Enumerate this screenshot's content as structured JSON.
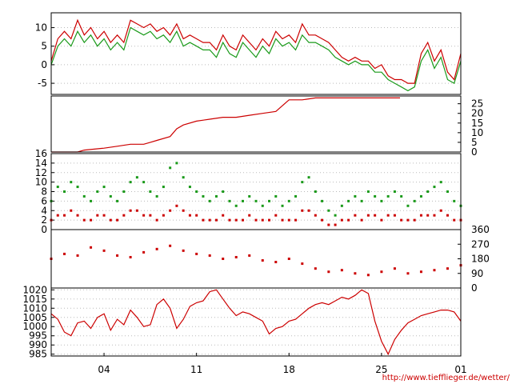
{
  "credit": "http://www.tiefflieger.de/wetter/",
  "colors": {
    "red": "#cc0000",
    "green": "#1a9a1a",
    "grid": "#bbbbbb",
    "axis": "#000000"
  },
  "chart_data": [
    {
      "type": "line",
      "panel": "temperature",
      "x_tick_labels": [
        "04",
        "11",
        "18",
        "25",
        "01"
      ],
      "y_ticks": [
        "10",
        "5",
        "0",
        "-5"
      ],
      "y_tick_side": "left",
      "ylim": [
        -8,
        14
      ],
      "xlim": [
        0,
        31
      ],
      "grid": true,
      "series": [
        {
          "color": "red",
          "x": [
            0,
            0.5,
            1,
            1.5,
            2,
            2.5,
            3,
            3.5,
            4,
            4.5,
            5,
            5.5,
            6,
            6.5,
            7,
            7.5,
            8,
            8.5,
            9,
            9.5,
            10,
            10.5,
            11,
            11.5,
            12,
            12.5,
            13,
            13.5,
            14,
            14.5,
            15,
            15.5,
            16,
            16.5,
            17,
            17.5,
            18,
            18.5,
            19,
            19.5,
            20,
            20.5,
            21,
            21.5,
            22,
            22.5,
            23,
            23.5,
            24,
            24.5,
            25,
            25.5,
            26,
            26.5,
            27,
            27.5,
            28,
            28.5,
            29,
            29.5,
            30,
            30.5,
            31
          ],
          "y": [
            1,
            7,
            9,
            7,
            12,
            8,
            10,
            7,
            9,
            6,
            8,
            6,
            12,
            11,
            10,
            11,
            9,
            10,
            8,
            11,
            7,
            8,
            7,
            6,
            6,
            4,
            8,
            5,
            4,
            8,
            6,
            4,
            7,
            5,
            9,
            7,
            8,
            6,
            11,
            8,
            8,
            7,
            6,
            4,
            2,
            1,
            2,
            1,
            1,
            -1,
            0,
            -3,
            -4,
            -4,
            -5,
            -5,
            3,
            6,
            1,
            4,
            -2,
            -4,
            3
          ]
        },
        {
          "color": "green",
          "x": [
            0,
            0.5,
            1,
            1.5,
            2,
            2.5,
            3,
            3.5,
            4,
            4.5,
            5,
            5.5,
            6,
            6.5,
            7,
            7.5,
            8,
            8.5,
            9,
            9.5,
            10,
            10.5,
            11,
            11.5,
            12,
            12.5,
            13,
            13.5,
            14,
            14.5,
            15,
            15.5,
            16,
            16.5,
            17,
            17.5,
            18,
            18.5,
            19,
            19.5,
            20,
            20.5,
            21,
            21.5,
            22,
            22.5,
            23,
            23.5,
            24,
            24.5,
            25,
            25.5,
            26,
            26.5,
            27,
            27.5,
            28,
            28.5,
            29,
            29.5,
            30,
            30.5,
            31
          ],
          "y": [
            0,
            5,
            7,
            5,
            9,
            6,
            8,
            5,
            7,
            4,
            6,
            4,
            10,
            9,
            8,
            9,
            7,
            8,
            6,
            9,
            5,
            6,
            5,
            4,
            4,
            2,
            6,
            3,
            2,
            6,
            4,
            2,
            5,
            3,
            7,
            5,
            6,
            4,
            8,
            6,
            6,
            5,
            4,
            2,
            1,
            0,
            1,
            0,
            0,
            -2,
            -2,
            -4,
            -5,
            -6,
            -7,
            -6,
            1,
            4,
            -1,
            2,
            -4,
            -5,
            1
          ]
        }
      ]
    },
    {
      "type": "line",
      "panel": "precipitation",
      "y_ticks": [
        "25",
        "20",
        "15",
        "10",
        "5",
        "0"
      ],
      "y_tick_side": "right",
      "ylim": [
        0,
        29
      ],
      "xlim": [
        0,
        31
      ],
      "grid": false,
      "series": [
        {
          "color": "red",
          "x": [
            0,
            2,
            2.5,
            4,
            5,
            6,
            7,
            7.5,
            8,
            9,
            9.5,
            10,
            11,
            12,
            13,
            14,
            15,
            16,
            17,
            18,
            19,
            20,
            25,
            26.4
          ],
          "y": [
            0,
            0,
            1,
            2,
            3,
            4,
            4,
            5,
            6,
            8,
            12,
            14,
            16,
            17,
            18,
            18,
            19,
            20,
            21,
            27,
            27,
            28,
            28,
            28
          ]
        }
      ]
    },
    {
      "type": "scatter",
      "panel": "wind-speed",
      "y_ticks": [
        "16",
        "14",
        "12",
        "10",
        "8",
        "6",
        "4",
        "2",
        "0"
      ],
      "y_tick_side": "left",
      "ylim": [
        0,
        16
      ],
      "xlim": [
        0,
        31
      ],
      "grid": true,
      "series": [
        {
          "color": "green",
          "x": [
            0,
            0.5,
            1,
            1.5,
            2,
            2.5,
            3,
            3.5,
            4,
            4.5,
            5,
            5.5,
            6,
            6.5,
            7,
            7.5,
            8,
            8.5,
            9,
            9.5,
            10,
            10.5,
            11,
            11.5,
            12,
            12.5,
            13,
            13.5,
            14,
            14.5,
            15,
            15.5,
            16,
            16.5,
            17,
            17.5,
            18,
            18.5,
            19,
            19.5,
            20,
            20.5,
            21,
            21.5,
            22,
            22.5,
            23,
            23.5,
            24,
            24.5,
            25,
            25.5,
            26,
            26.5,
            27,
            27.5,
            28,
            28.5,
            29,
            29.5,
            30,
            30.5,
            31
          ],
          "y": [
            6,
            9,
            8,
            10,
            9,
            7,
            6,
            8,
            9,
            7,
            6,
            8,
            10,
            11,
            10,
            8,
            7,
            9,
            13,
            14,
            11,
            9,
            8,
            7,
            6,
            7,
            8,
            6,
            5,
            6,
            7,
            6,
            5,
            6,
            7,
            5,
            6,
            7,
            10,
            11,
            8,
            6,
            4,
            3,
            5,
            6,
            7,
            6,
            8,
            7,
            6,
            7,
            8,
            7,
            5,
            6,
            7,
            8,
            9,
            10,
            8,
            6,
            5
          ]
        },
        {
          "color": "red",
          "x": [
            0,
            0.5,
            1,
            1.5,
            2,
            2.5,
            3,
            3.5,
            4,
            4.5,
            5,
            5.5,
            6,
            6.5,
            7,
            7.5,
            8,
            8.5,
            9,
            9.5,
            10,
            10.5,
            11,
            11.5,
            12,
            12.5,
            13,
            13.5,
            14,
            14.5,
            15,
            15.5,
            16,
            16.5,
            17,
            17.5,
            18,
            18.5,
            19,
            19.5,
            20,
            20.5,
            21,
            21.5,
            22,
            22.5,
            23,
            23.5,
            24,
            24.5,
            25,
            25.5,
            26,
            26.5,
            27,
            27.5,
            28,
            28.5,
            29,
            29.5,
            30,
            30.5,
            31
          ],
          "y": [
            2,
            3,
            3,
            4,
            3,
            2,
            2,
            3,
            3,
            2,
            2,
            3,
            4,
            4,
            3,
            3,
            2,
            3,
            4,
            5,
            4,
            3,
            3,
            2,
            2,
            2,
            3,
            2,
            2,
            2,
            3,
            2,
            2,
            2,
            3,
            2,
            2,
            2,
            4,
            4,
            3,
            2,
            1,
            1,
            2,
            2,
            3,
            2,
            3,
            3,
            2,
            3,
            3,
            2,
            2,
            2,
            3,
            3,
            3,
            4,
            3,
            2,
            2
          ]
        }
      ]
    },
    {
      "type": "scatter",
      "panel": "wind-direction",
      "y_ticks": [
        "360",
        "270",
        "180",
        "90",
        "0"
      ],
      "y_tick_side": "right",
      "ylim": [
        0,
        360
      ],
      "xlim": [
        0,
        31
      ],
      "grid": false,
      "series": [
        {
          "color": "red",
          "x": [
            0,
            1,
            2,
            3,
            4,
            5,
            6,
            7,
            8,
            9,
            10,
            11,
            12,
            13,
            14,
            15,
            16,
            17,
            18,
            19,
            20,
            21,
            22,
            23,
            24,
            25,
            26,
            27,
            28,
            29,
            30,
            31
          ],
          "y": [
            180,
            210,
            200,
            250,
            230,
            200,
            190,
            220,
            240,
            260,
            230,
            210,
            200,
            180,
            190,
            200,
            170,
            160,
            180,
            150,
            120,
            100,
            110,
            90,
            80,
            100,
            120,
            90,
            100,
            110,
            120,
            140
          ]
        }
      ]
    },
    {
      "type": "line",
      "panel": "pressure",
      "x_tick_labels": [
        "04",
        "11",
        "18",
        "25",
        "01"
      ],
      "y_ticks": [
        "1020",
        "1015",
        "1010",
        "1005",
        "1000",
        "995",
        "990",
        "985"
      ],
      "y_tick_side": "left",
      "ylim": [
        984,
        1021
      ],
      "xlim": [
        0,
        31
      ],
      "grid": true,
      "series": [
        {
          "color": "red",
          "x": [
            0,
            0.5,
            1,
            1.5,
            2,
            2.5,
            3,
            3.5,
            4,
            4.5,
            5,
            5.5,
            6,
            6.5,
            7,
            7.5,
            8,
            8.5,
            9,
            9.5,
            10,
            10.5,
            11,
            11.5,
            12,
            12.5,
            13,
            13.5,
            14,
            14.5,
            15,
            15.5,
            16,
            16.5,
            17,
            17.5,
            18,
            18.5,
            19,
            19.5,
            20,
            20.5,
            21,
            21.5,
            22,
            22.5,
            23,
            23.5,
            24,
            24.5,
            25,
            25.5,
            26,
            26.5,
            27,
            27.5,
            28,
            28.5,
            29,
            29.5,
            30,
            30.5,
            31
          ],
          "y": [
            1007,
            1004,
            997,
            995,
            1002,
            1003,
            999,
            1005,
            1007,
            998,
            1004,
            1001,
            1009,
            1005,
            1000,
            1001,
            1012,
            1015,
            1010,
            999,
            1004,
            1011,
            1013,
            1014,
            1019,
            1020,
            1015,
            1010,
            1006,
            1008,
            1007,
            1005,
            1003,
            996,
            999,
            1000,
            1003,
            1004,
            1007,
            1010,
            1012,
            1013,
            1012,
            1014,
            1016,
            1015,
            1017,
            1020,
            1018,
            1003,
            992,
            985,
            993,
            998,
            1002,
            1004,
            1006,
            1007,
            1008,
            1009,
            1009,
            1008,
            1003
          ]
        }
      ]
    }
  ]
}
